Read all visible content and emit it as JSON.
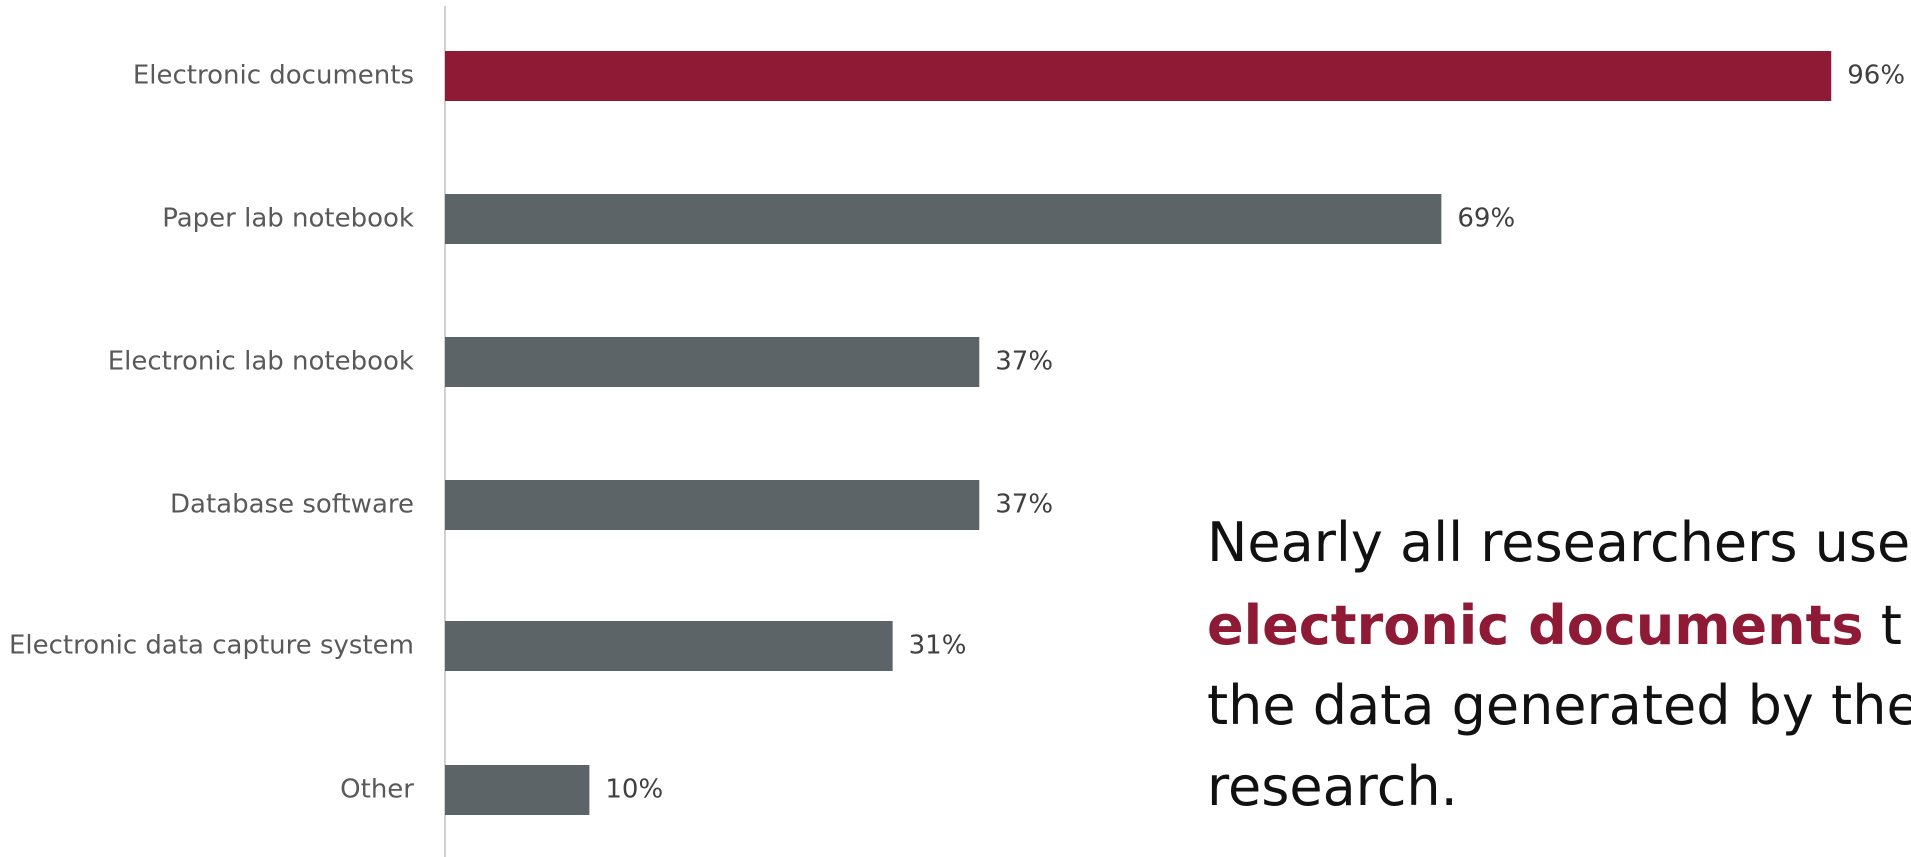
{
  "chart_data": {
    "type": "hbar",
    "categories": [
      "Electronic documents",
      "Paper lab notebook",
      "Electronic lab notebook",
      "Database software",
      "Electronic data capture system",
      "Other"
    ],
    "values": [
      96,
      69,
      37,
      37,
      31,
      10
    ],
    "value_labels": [
      "96%",
      "69%",
      "37%",
      "37%",
      "31%",
      "10%"
    ],
    "colors": [
      "#8e1a35",
      "#5d6467",
      "#5d6467",
      "#5d6467",
      "#5d6467",
      "#5d6467"
    ],
    "xlim": [
      0,
      100
    ],
    "annotation": {
      "lines": [
        [
          {
            "text": "Nearly all researchers use"
          }
        ],
        [
          {
            "text": "electronic documents",
            "bold": true,
            "color": "#8e1a35"
          },
          {
            "text": " t"
          }
        ],
        [
          {
            "text": "the data generated by their"
          }
        ],
        [
          {
            "text": "research."
          }
        ]
      ]
    }
  }
}
